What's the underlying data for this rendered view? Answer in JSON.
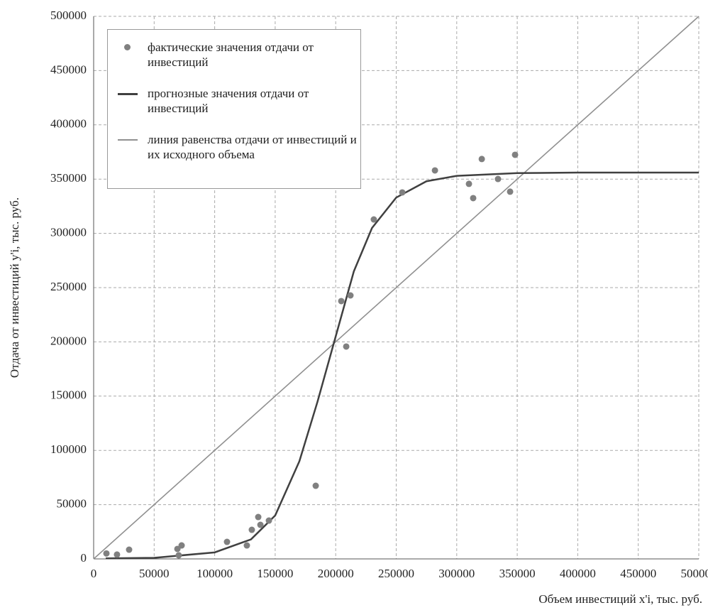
{
  "chart_data": {
    "type": "scatter",
    "xlabel": "Объем инвестиций x'i, тыс. руб.",
    "ylabel": "Отдача от инвестиций y'i, тыс. руб.",
    "xlim": [
      0,
      500000
    ],
    "ylim": [
      0,
      500000
    ],
    "xticks": [
      0,
      50000,
      100000,
      150000,
      200000,
      250000,
      300000,
      350000,
      400000,
      450000,
      500000
    ],
    "yticks": [
      0,
      50000,
      100000,
      150000,
      200000,
      250000,
      300000,
      350000,
      400000,
      450000,
      500000
    ],
    "grid": true,
    "legend": "upper left",
    "series": [
      {
        "name": "фактические значения отдачи от инвестиций",
        "type": "scatter",
        "color": "#808080",
        "x": [
          10550,
          19300,
          29300,
          69200,
          70300,
          72700,
          110200,
          126600,
          130700,
          136000,
          137800,
          144800,
          183500,
          204600,
          208700,
          212200,
          231500,
          255000,
          282000,
          310100,
          313600,
          320700,
          334100,
          344100,
          348200
        ],
        "values": [
          5000,
          4000,
          8500,
          9200,
          3300,
          12400,
          15700,
          12400,
          26800,
          38600,
          31400,
          35300,
          67400,
          237600,
          195700,
          242800,
          312800,
          337700,
          358000,
          345600,
          332500,
          368500,
          350100,
          338400,
          372400
        ]
      },
      {
        "name": "прогнозные значения отдачи от инвестиций",
        "type": "line",
        "color": "#404040",
        "x": [
          10000,
          50000,
          100000,
          130000,
          150000,
          170000,
          185000,
          200000,
          215000,
          230000,
          250000,
          275000,
          300000,
          350000,
          400000,
          500000
        ],
        "values": [
          500,
          1000,
          6000,
          18000,
          40000,
          90000,
          145000,
          205000,
          265000,
          305000,
          333000,
          348000,
          353000,
          355500,
          356000,
          356000
        ]
      },
      {
        "name": "линия равенства отдачи от инвестиций и их исходного объема",
        "type": "line",
        "color": "#909090",
        "x": [
          0,
          500000
        ],
        "values": [
          0,
          500000
        ]
      }
    ]
  }
}
